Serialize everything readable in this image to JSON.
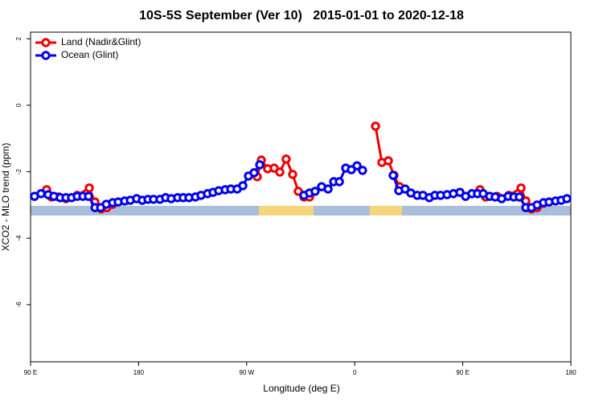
{
  "chart_data": {
    "type": "line",
    "title": "10S-5S September (Ver 10)   2015-01-01 to 2020-12-18",
    "x_label": "Longitude (deg E)",
    "y_label": "XCO2 - MLO trend (ppm)",
    "xlim": [
      90,
      540
    ],
    "xticks": [
      {
        "value": 90,
        "label": "90 E"
      },
      {
        "value": 180,
        "label": "180"
      },
      {
        "value": 270,
        "label": "90 W"
      },
      {
        "value": 360,
        "label": "0"
      },
      {
        "value": 450,
        "label": "90 E"
      },
      {
        "value": 540,
        "label": "180"
      }
    ],
    "ylim": [
      -7.72,
      2.2
    ],
    "yticks": [
      2,
      0,
      -2,
      -4,
      -6
    ],
    "legend": "top-left",
    "series": [
      {
        "name": "Land (Nadir&Glint)",
        "color": "#ee0000",
        "x": [
          103.4,
          107.4,
          113.4,
          119.5,
          128.9,
          138.9,
          143.6,
          148.9,
          153.6,
          158.3,
          220,
          278.8,
          282.2,
          287.5,
          292.9,
          297.6,
          302.9,
          308.3,
          313.0,
          317.7,
          322.4,
          350,
          377.3,
          382.6,
          388.0,
          392.7,
          397.4,
          430,
          464.3,
          469.0,
          478.4,
          488.4,
          498.5,
          502.5,
          507.2,
          511.9,
          517.2
        ],
        "values": [
          -2.54,
          -2.76,
          -2.76,
          -2.81,
          -2.71,
          -2.49,
          -2.91,
          -3.12,
          -3.08,
          -2.98,
          null,
          -2.15,
          -1.65,
          -1.91,
          -1.89,
          -2.01,
          -1.62,
          -2.08,
          -2.59,
          -2.76,
          -2.76,
          null,
          -0.63,
          -1.72,
          -1.67,
          -2.11,
          -2.45,
          null,
          -2.54,
          -2.76,
          -2.74,
          -2.71,
          -2.49,
          -2.88,
          -3.12,
          -3.08,
          -2.95
        ]
      },
      {
        "name": "Ocean (Glint)",
        "color": "#0000ee",
        "x": [
          93.3,
          98.7,
          104.7,
          109.4,
          114.7,
          119.5,
          124.2,
          128.9,
          133.6,
          138.3,
          143.7,
          148.4,
          153.1,
          158.4,
          163.0,
          168.4,
          173.1,
          178.4,
          183.1,
          187.8,
          192.4,
          197.8,
          202.5,
          207.2,
          212.5,
          217.2,
          221.9,
          227.3,
          232.0,
          237.4,
          242.0,
          246.7,
          252.1,
          256.8,
          262.1,
          266.8,
          271.5,
          276.2,
          280.9,
          299,
          317.7,
          322.4,
          327.0,
          332.4,
          337.8,
          342.5,
          347.2,
          352.5,
          357.2,
          361.9,
          366.5,
          379,
          392.0,
          396.7,
          402.0,
          406.7,
          412.1,
          416.8,
          422.1,
          426.8,
          431.5,
          436.9,
          442.2,
          447.6,
          452.3,
          457.6,
          462.3,
          467.0,
          472.4,
          477.0,
          482.4,
          487.8,
          492.5,
          497.1,
          502.5,
          507.2,
          511.9,
          517.2,
          521.9,
          527.3,
          532.0,
          536.7
        ],
        "values": [
          -2.74,
          -2.66,
          -2.69,
          -2.74,
          -2.78,
          -2.78,
          -2.78,
          -2.74,
          -2.74,
          -2.74,
          -3.08,
          -3.08,
          -2.98,
          -2.93,
          -2.91,
          -2.88,
          -2.86,
          -2.81,
          -2.86,
          -2.83,
          -2.83,
          -2.83,
          -2.78,
          -2.81,
          -2.78,
          -2.78,
          -2.78,
          -2.76,
          -2.71,
          -2.66,
          -2.62,
          -2.57,
          -2.54,
          -2.52,
          -2.52,
          -2.42,
          -2.13,
          -2.03,
          -1.79,
          null,
          -2.71,
          -2.64,
          -2.59,
          -2.45,
          -2.52,
          -2.3,
          -2.3,
          -1.89,
          -1.94,
          -1.82,
          -1.96,
          null,
          -2.11,
          -2.57,
          -2.52,
          -2.64,
          -2.71,
          -2.71,
          -2.78,
          -2.71,
          -2.71,
          -2.69,
          -2.66,
          -2.62,
          -2.74,
          -2.66,
          -2.66,
          -2.66,
          -2.74,
          -2.76,
          -2.81,
          -2.74,
          -2.76,
          -2.76,
          -3.08,
          -3.08,
          -3.0,
          -2.93,
          -2.91,
          -2.88,
          -2.86,
          -2.81
        ]
      }
    ]
  }
}
